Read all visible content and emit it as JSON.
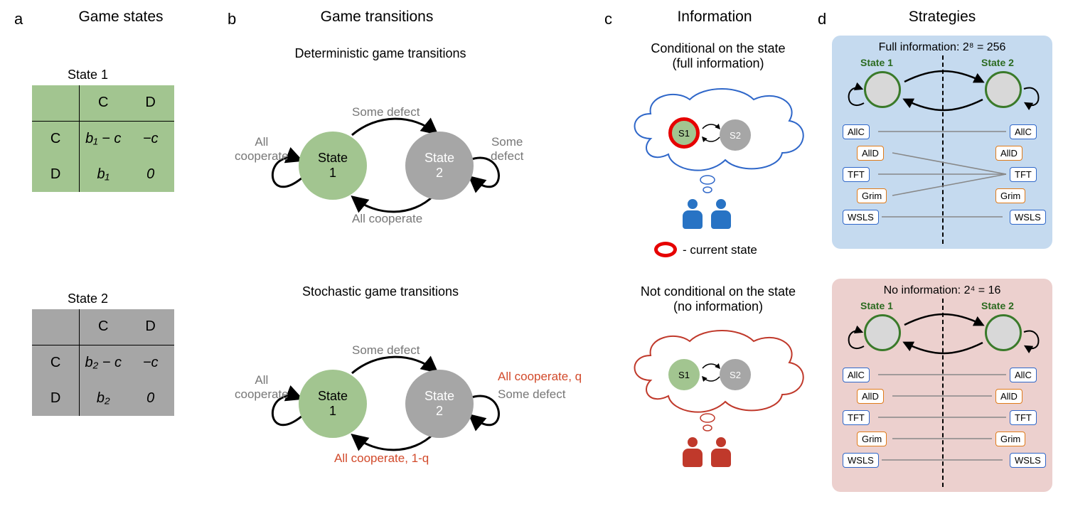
{
  "colors": {
    "state1_fill": "#a2c590",
    "state2_fill": "#a6a6a6",
    "text_gray": "#777777",
    "text_black": "#000000",
    "text_red": "#d24a2b",
    "blue": "#2f67c9",
    "person_blue": "#2873c4",
    "person_red": "#c0392b",
    "ring_red": "#e60000",
    "panel_d_blue_bg": "#c5daef",
    "panel_d_red_bg": "#ecd0ce",
    "d_circle_border": "#3a7a2a",
    "d_circle_fill": "#d8d8d8",
    "strat_blue": "#2f67c9",
    "strat_orange": "#e07b1a",
    "line_gray": "#888888"
  },
  "a": {
    "label": "a",
    "title": "Game states",
    "state1": {
      "name": "State 1",
      "headers": [
        "C",
        "D"
      ],
      "rows": [
        {
          "h": "C",
          "cells": [
            "b₁ − c",
            "−c"
          ]
        },
        {
          "h": "D",
          "cells": [
            "b₁",
            "0"
          ]
        }
      ]
    },
    "state2": {
      "name": "State 2",
      "headers": [
        "C",
        "D"
      ],
      "rows": [
        {
          "h": "C",
          "cells": [
            "b₂ − c",
            "−c"
          ]
        },
        {
          "h": "D",
          "cells": [
            "b₂",
            "0"
          ]
        }
      ]
    }
  },
  "b": {
    "label": "b",
    "title": "Game transitions",
    "det": {
      "title": "Deterministic game transitions",
      "state1": "State\n1",
      "state2": "State\n2",
      "top": "Some defect",
      "bottom": "All cooperate",
      "left": "All\ncooperate",
      "right": "Some\ndefect"
    },
    "sto": {
      "title": "Stochastic game transitions",
      "state1": "State\n1",
      "state2": "State\n2",
      "top": "Some defect",
      "bottom": "All cooperate, 1-q",
      "left": "All\ncooperate",
      "right_red": "All cooperate, q",
      "right_gray": "Some defect"
    }
  },
  "c": {
    "label": "c",
    "title": "Information",
    "full": {
      "title": "Conditional on the state\n(full information)",
      "s1": "S1",
      "s2": "S2",
      "legend": "- current state"
    },
    "none": {
      "title": "Not conditional on the state\n(no information)",
      "s1": "S1",
      "s2": "S2"
    }
  },
  "d": {
    "label": "d",
    "title": "Strategies",
    "full": {
      "heading": "Full information: 2⁸ = 256",
      "s1": "State 1",
      "s2": "State 2",
      "strats": [
        "AllC",
        "AllD",
        "TFT",
        "Grim",
        "WSLS"
      ]
    },
    "none": {
      "heading": "No information: 2⁴ = 16",
      "s1": "State 1",
      "s2": "State 2",
      "strats": [
        "AllC",
        "AllD",
        "TFT",
        "Grim",
        "WSLS"
      ]
    },
    "strat_colors": [
      "strat_blue",
      "strat_orange",
      "strat_blue",
      "strat_orange",
      "strat_blue"
    ]
  }
}
